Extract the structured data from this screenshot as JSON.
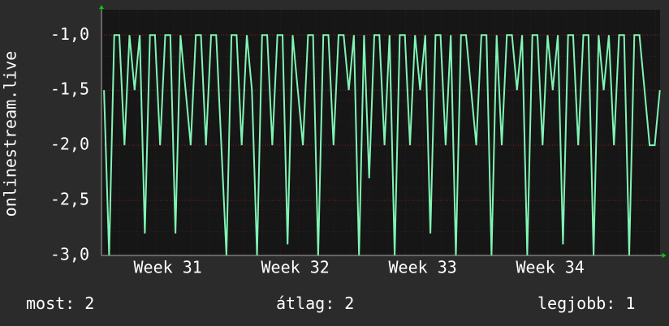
{
  "chart_data": {
    "type": "line",
    "y_label": "onlinestream.live",
    "color": "#80f5b4",
    "xlim": [
      30.98,
      35.36
    ],
    "ylim": [
      -3,
      -0.77
    ],
    "xticks": [
      {
        "value": 31.5,
        "label": "Week 31"
      },
      {
        "value": 32.5,
        "label": "Week 32"
      },
      {
        "value": 33.5,
        "label": "Week 33"
      },
      {
        "value": 34.5,
        "label": "Week 34"
      }
    ],
    "yticks": [
      {
        "value": -3,
        "label": "-3,0"
      },
      {
        "value": -2.5,
        "label": "-2,5"
      },
      {
        "value": -2,
        "label": "-2,0"
      },
      {
        "value": -1.5,
        "label": "-1,5"
      },
      {
        "value": -1,
        "label": "-1,0"
      }
    ],
    "x": [
      31.0,
      31.04,
      31.08,
      31.12,
      31.16,
      31.2,
      31.24,
      31.28,
      31.32,
      31.36,
      31.4,
      31.44,
      31.48,
      31.52,
      31.56,
      31.6,
      31.64,
      31.68,
      31.72,
      31.76,
      31.8,
      31.84,
      31.88,
      31.92,
      31.96,
      32.0,
      32.04,
      32.08,
      32.12,
      32.16,
      32.2,
      32.24,
      32.28,
      32.32,
      32.36,
      32.4,
      32.44,
      32.48,
      32.52,
      32.56,
      32.6,
      32.64,
      32.68,
      32.72,
      32.76,
      32.8,
      32.84,
      32.88,
      32.92,
      32.96,
      33.0,
      33.04,
      33.08,
      33.12,
      33.16,
      33.2,
      33.24,
      33.28,
      33.32,
      33.36,
      33.4,
      33.44,
      33.48,
      33.52,
      33.56,
      33.6,
      33.64,
      33.68,
      33.72,
      33.76,
      33.8,
      33.84,
      33.88,
      33.92,
      33.96,
      34.0,
      34.04,
      34.08,
      34.12,
      34.16,
      34.2,
      34.24,
      34.28,
      34.32,
      34.36,
      34.4,
      34.44,
      34.48,
      34.52,
      34.56,
      34.6,
      34.64,
      34.68,
      34.72,
      34.76,
      34.8,
      34.84,
      34.88,
      34.92,
      34.96,
      35.0,
      35.04,
      35.08,
      35.12,
      35.16,
      35.2,
      35.24,
      35.28,
      35.32,
      35.36
    ],
    "values": [
      -1.5,
      -3,
      -1,
      -1,
      -2,
      -1,
      -1.5,
      -1,
      -2.8,
      -1,
      -1,
      -2,
      -1,
      -1,
      -2.8,
      -1,
      -1.5,
      -2,
      -1,
      -1,
      -2,
      -1,
      -1,
      -2,
      -3,
      -1,
      -1,
      -2,
      -1,
      -1.5,
      -3,
      -1,
      -1,
      -2,
      -1,
      -1,
      -2.9,
      -1,
      -1.5,
      -2,
      -1,
      -1,
      -3,
      -1,
      -1,
      -2,
      -1,
      -1,
      -1.5,
      -1,
      -3,
      -1,
      -2.3,
      -1,
      -1,
      -2,
      -1,
      -3,
      -1,
      -1,
      -2,
      -1,
      -1.5,
      -1,
      -2.8,
      -1,
      -1,
      -2,
      -1,
      -3,
      -1,
      -1,
      -1.5,
      -2,
      -1,
      -1,
      -3,
      -1,
      -2,
      -1,
      -1,
      -1.5,
      -1,
      -3,
      -1,
      -1,
      -2,
      -1,
      -1.5,
      -1,
      -2.9,
      -1,
      -1,
      -2,
      -1,
      -1,
      -3,
      -1,
      -1.5,
      -1,
      -2,
      -1,
      -1,
      -3,
      -1,
      -1,
      -1.5,
      -2,
      -2,
      -1.5
    ],
    "stats": [
      {
        "label": "most:",
        "value": 2
      },
      {
        "label": "átlag:",
        "value": 2
      },
      {
        "label": "legjobb:",
        "value": 1
      }
    ]
  }
}
